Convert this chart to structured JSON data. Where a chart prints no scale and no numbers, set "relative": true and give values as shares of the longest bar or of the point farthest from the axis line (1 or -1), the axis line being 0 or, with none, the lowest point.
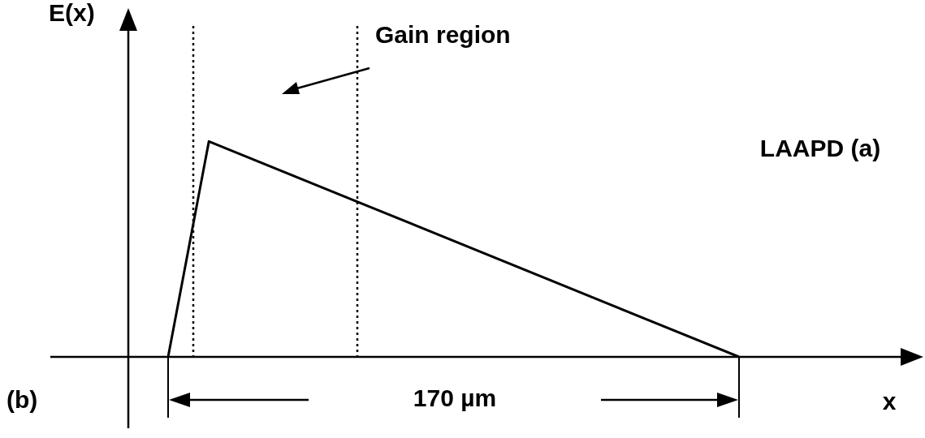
{
  "chart_data": {
    "type": "line",
    "relative": true,
    "categories": [
      null,
      null,
      null,
      null,
      null,
      null,
      null,
      null,
      null,
      null,
      null,
      null,
      null,
      null,
      null
    ],
    "values": [
      0,
      1,
      null,
      null,
      null,
      null,
      null,
      null,
      null,
      null,
      null,
      null,
      null,
      null,
      0
    ],
    "color": "#000000",
    "annotations": [
      "E(x)",
      "x",
      "Gain region",
      "170 µm",
      "LAAPD (a)",
      "(b)"
    ]
  }
}
